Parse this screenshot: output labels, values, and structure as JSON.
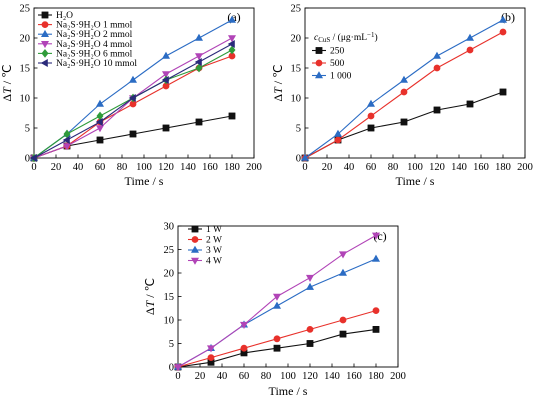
{
  "chart_data": [
    {
      "panel": "(a)",
      "type": "line",
      "xlabel": "Time / s",
      "ylabel": "ΔT / ℃",
      "xlim": [
        0,
        200
      ],
      "ylim": [
        0,
        25
      ],
      "xticks": [
        0,
        20,
        40,
        60,
        80,
        100,
        120,
        140,
        160,
        180,
        200
      ],
      "yticks": [
        0,
        5,
        10,
        15,
        20,
        25
      ],
      "legend_placement": "top-left",
      "legend_title": "",
      "grid": false,
      "x": [
        0,
        30,
        60,
        90,
        120,
        150,
        180
      ],
      "series": [
        {
          "name": "H₂O",
          "marker": "square",
          "color": "#111111",
          "values": [
            0,
            2,
            3,
            4,
            5,
            6,
            7
          ]
        },
        {
          "name": "Na₂S·9H₂O 1 mmol",
          "marker": "circle",
          "color": "#e8312b",
          "values": [
            0,
            2,
            6,
            9,
            12,
            15,
            17
          ]
        },
        {
          "name": "Na₂S·9H₂O 2 mmol",
          "marker": "triangle-up",
          "color": "#2b6cc4",
          "values": [
            0,
            4,
            9,
            13,
            17,
            20,
            23
          ]
        },
        {
          "name": "Na₂S·9H₂O 4 mmol",
          "marker": "triangle-down",
          "color": "#b144b7",
          "values": [
            0,
            2,
            5,
            10,
            14,
            17,
            20
          ]
        },
        {
          "name": "Na₂S·9H₂O 6 mmol",
          "marker": "diamond",
          "color": "#2f9b3a",
          "values": [
            0,
            4,
            7,
            10,
            13,
            15,
            18
          ]
        },
        {
          "name": "Na₂S·9H₂O 10 mmol",
          "marker": "triangle-left",
          "color": "#2a2a7a",
          "values": [
            0,
            3,
            6,
            10,
            13,
            16,
            19
          ]
        }
      ]
    },
    {
      "panel": "(b)",
      "type": "line",
      "xlabel": "Time / s",
      "ylabel": "ΔT / ℃",
      "xlim": [
        0,
        200
      ],
      "ylim": [
        0,
        25
      ],
      "xticks": [
        0,
        20,
        40,
        60,
        80,
        100,
        120,
        140,
        160,
        180,
        200
      ],
      "yticks": [
        0,
        5,
        10,
        15,
        20,
        25
      ],
      "legend_placement": "top-left",
      "legend_title": "c_CuS / (μg·mL⁻¹)",
      "grid": false,
      "x": [
        0,
        30,
        60,
        90,
        120,
        150,
        180
      ],
      "series": [
        {
          "name": "250",
          "marker": "square",
          "color": "#111111",
          "values": [
            0,
            3,
            5,
            6,
            8,
            9,
            11
          ]
        },
        {
          "name": "500",
          "marker": "circle",
          "color": "#e8312b",
          "values": [
            0,
            3,
            7,
            11,
            15,
            18,
            21
          ]
        },
        {
          "name": "1 000",
          "marker": "triangle-up",
          "color": "#2b6cc4",
          "values": [
            0,
            4,
            9,
            13,
            17,
            20,
            23
          ]
        }
      ]
    },
    {
      "panel": "(c)",
      "type": "line",
      "xlabel": "Time / s",
      "ylabel": "ΔT / ℃",
      "xlim": [
        0,
        200
      ],
      "ylim": [
        0,
        30
      ],
      "xticks": [
        0,
        20,
        40,
        60,
        80,
        100,
        120,
        140,
        160,
        180,
        200
      ],
      "yticks": [
        0,
        5,
        10,
        15,
        20,
        25,
        30
      ],
      "legend_placement": "top-left",
      "legend_title": "",
      "grid": false,
      "x": [
        0,
        30,
        60,
        90,
        120,
        150,
        180
      ],
      "series": [
        {
          "name": "1 W",
          "marker": "square",
          "color": "#111111",
          "values": [
            0,
            1,
            3,
            4,
            5,
            7,
            8
          ]
        },
        {
          "name": "2 W",
          "marker": "circle",
          "color": "#e8312b",
          "values": [
            0,
            2,
            4,
            6,
            8,
            10,
            12
          ]
        },
        {
          "name": "3 W",
          "marker": "triangle-up",
          "color": "#2b6cc4",
          "values": [
            0,
            4,
            9,
            13,
            17,
            20,
            23
          ]
        },
        {
          "name": "4 W",
          "marker": "triangle-down",
          "color": "#b144b7",
          "values": [
            0,
            4,
            9,
            15,
            19,
            24,
            28
          ]
        }
      ]
    }
  ]
}
